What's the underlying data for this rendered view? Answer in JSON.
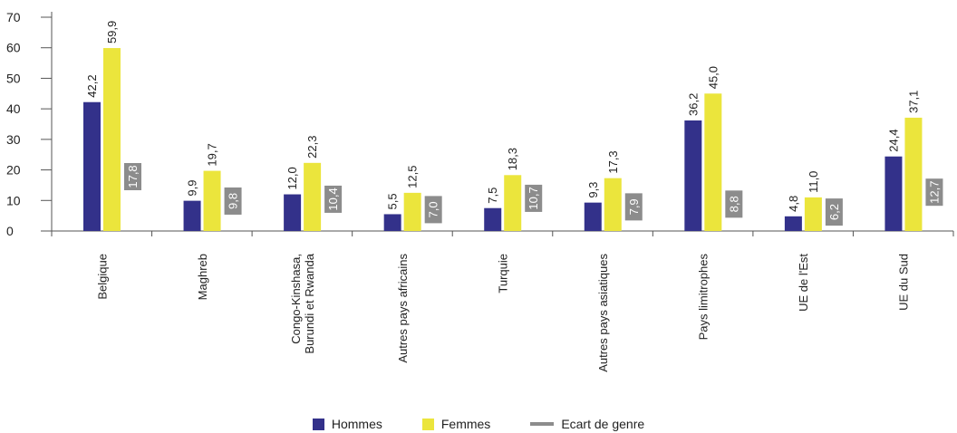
{
  "chart_data": {
    "type": "bar",
    "categories": [
      "Belgique",
      "Maghreb",
      "Congo-Kinshasa, Burundi et Rwanda",
      "Autres pays africains",
      "Turquie",
      "Autres pays asiatiques",
      "Pays limitrophes",
      "UE de l'Est",
      "UE du Sud"
    ],
    "category_lines": [
      [
        "Belgique"
      ],
      [
        "Maghreb"
      ],
      [
        "Congo-Kinshasa,",
        "Burundi et Rwanda"
      ],
      [
        "Autres pays africains"
      ],
      [
        "Turquie"
      ],
      [
        "Autres pays asiatiques"
      ],
      [
        "Pays limitrophes"
      ],
      [
        "UE de l'Est"
      ],
      [
        "UE du Sud"
      ]
    ],
    "series": [
      {
        "name": "Hommes",
        "values": [
          42.2,
          9.9,
          12.0,
          5.5,
          7.5,
          9.3,
          36.2,
          4.8,
          24.4
        ],
        "labels": [
          "42,2",
          "9,9",
          "12,0",
          "5,5",
          "7,5",
          "9,3",
          "36,2",
          "4,8",
          "24,4"
        ],
        "color": "#33318a"
      },
      {
        "name": "Femmes",
        "values": [
          59.9,
          19.7,
          22.3,
          12.5,
          18.3,
          17.3,
          45.0,
          11.0,
          37.1
        ],
        "labels": [
          "59,9",
          "19,7",
          "22,3",
          "12,5",
          "18,3",
          "17,3",
          "45,0",
          "11,0",
          "37,1"
        ],
        "color": "#ebe53c"
      },
      {
        "name": "Ecart de genre",
        "values": [
          17.8,
          9.8,
          10.4,
          7.0,
          10.7,
          7.9,
          8.8,
          6.2,
          12.7
        ],
        "labels": [
          "17,8",
          "9,8",
          "10,4",
          "7,0",
          "10,7",
          "7,9",
          "8,8",
          "6,2",
          "12,7"
        ],
        "color": "#8c8c8c"
      }
    ],
    "yticks": [
      "0",
      "10",
      "20",
      "30",
      "40",
      "50",
      "60",
      "70"
    ],
    "ylim": [
      0,
      70
    ],
    "grid": false,
    "legend_position": "bottom"
  }
}
